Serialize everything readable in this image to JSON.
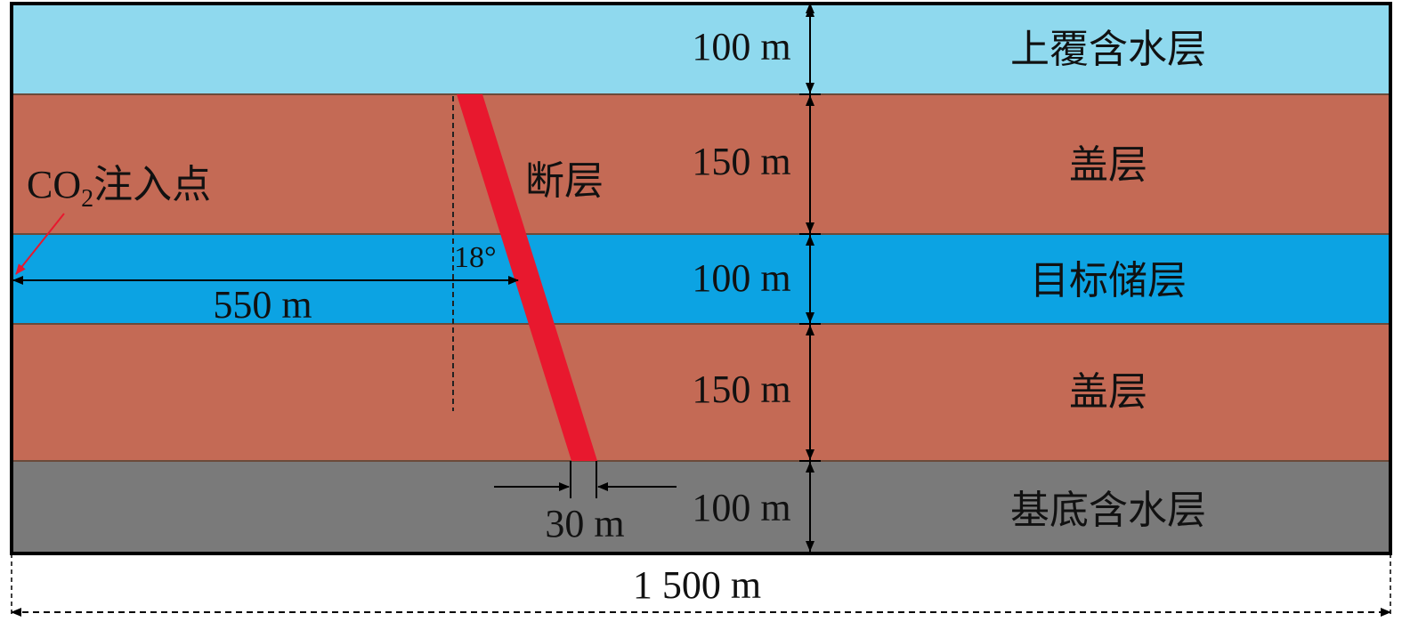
{
  "diagram": {
    "layers": [
      {
        "thickness": "100 m",
        "name": "上覆含水层",
        "color": "#8FD9EE"
      },
      {
        "thickness": "150 m",
        "name": "盖层",
        "color": "#C46A55"
      },
      {
        "thickness": "100 m",
        "name": "目标储层",
        "color": "#0CA3E3"
      },
      {
        "thickness": "150 m",
        "name": "盖层",
        "color": "#C46A55"
      },
      {
        "thickness": "100 m",
        "name": "基底含水层",
        "color": "#7A7A7A"
      }
    ],
    "fault": {
      "label": "断层",
      "angle": "18°",
      "width": "30 m",
      "color": "#E8182E"
    },
    "injection": {
      "label_prefix": "CO",
      "label_sub": "2",
      "label_suffix": "注入点",
      "distance": "550 m"
    },
    "total_width": "1 500 m"
  }
}
